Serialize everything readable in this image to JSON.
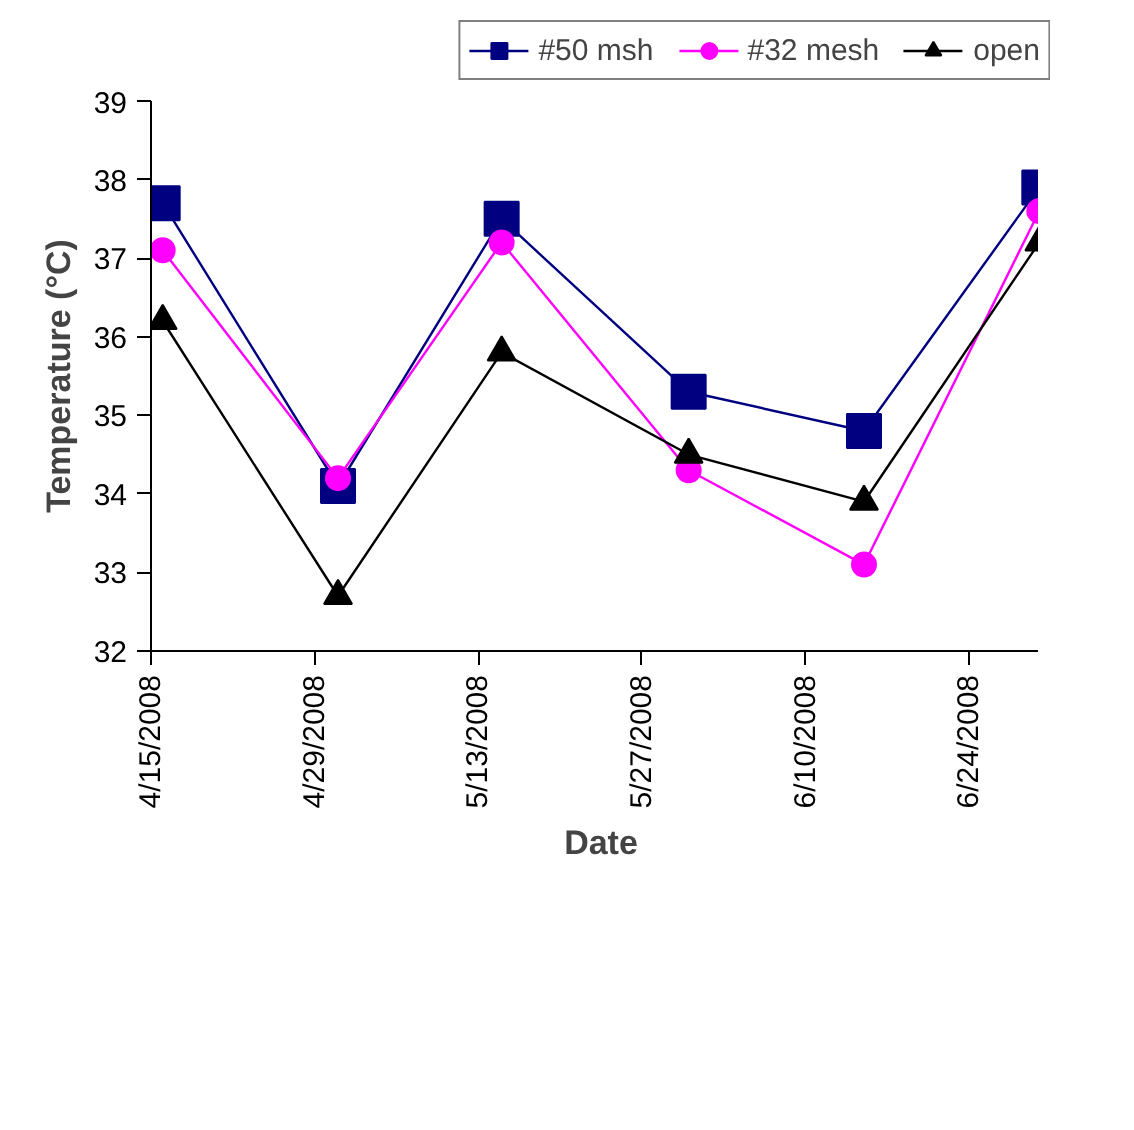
{
  "chart_data": {
    "type": "line",
    "xlabel": "Date",
    "ylabel": "Temperature (°C)",
    "x": [
      "2008-04-16",
      "2008-05-01",
      "2008-05-15",
      "2008-05-31",
      "2008-06-15",
      "2008-06-30"
    ],
    "series": [
      {
        "name": "#50 msh",
        "color": "#000080",
        "marker": "square",
        "values": [
          37.7,
          34.1,
          37.5,
          35.3,
          34.8,
          37.9
        ]
      },
      {
        "name": "#32 mesh",
        "color": "#ff00ff",
        "marker": "circle",
        "values": [
          37.1,
          34.2,
          37.2,
          34.3,
          33.1,
          37.6
        ]
      },
      {
        "name": "open",
        "color": "#000000",
        "marker": "triangle",
        "values": [
          36.2,
          32.7,
          35.8,
          34.5,
          33.9,
          37.2
        ]
      }
    ],
    "xlim": [
      "2008-04-15",
      "2008-07-01"
    ],
    "xticks": [
      {
        "value": "2008-04-15",
        "label": "4/15/2008"
      },
      {
        "value": "2008-04-29",
        "label": "4/29/2008"
      },
      {
        "value": "2008-05-13",
        "label": "5/13/2008"
      },
      {
        "value": "2008-05-27",
        "label": "5/27/2008"
      },
      {
        "value": "2008-06-10",
        "label": "6/10/2008"
      },
      {
        "value": "2008-06-24",
        "label": "6/24/2008"
      }
    ],
    "ylim": [
      32,
      39
    ],
    "yticks": [
      32,
      33,
      34,
      35,
      36,
      37,
      38,
      39
    ],
    "grid": false,
    "legend": "top right",
    "line_style": "solid"
  }
}
